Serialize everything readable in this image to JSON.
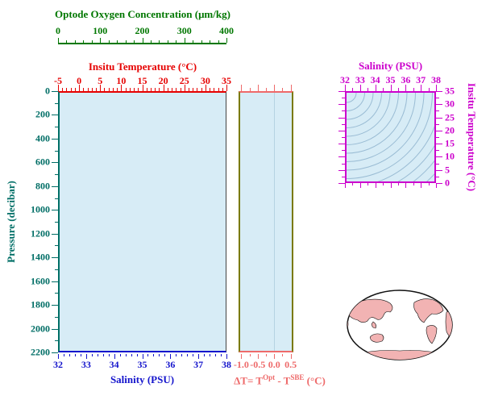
{
  "colors": {
    "oxygen": "#007700",
    "temperature": "#e60000",
    "pressure": "#006e66",
    "salinity": "#1414cc",
    "delta": "#ee6a6a",
    "ts": "#cc00cc",
    "frame_olive": "#7a7a00",
    "frame_dark": "#444444",
    "plot_fill": "#d7ecf6",
    "contour": "#9abcd4",
    "grid": "#b5d3e2",
    "land": "#f2b3b3",
    "outline": "#111111"
  },
  "main_plot": {
    "oxygen_axis": {
      "label": "Optode Oxygen Concentration (μm/kg)",
      "ticks": [
        "0",
        "100",
        "200",
        "300",
        "400"
      ]
    },
    "temperature_axis": {
      "label": "Insitu Temperature (°C)",
      "ticks": [
        "-5",
        "0",
        "5",
        "10",
        "15",
        "20",
        "25",
        "30",
        "35"
      ]
    },
    "pressure_axis": {
      "label": "Pressure (decibar)",
      "ticks": [
        "0",
        "200",
        "400",
        "600",
        "800",
        "1000",
        "1200",
        "1400",
        "1600",
        "1800",
        "2000",
        "2200"
      ]
    },
    "salinity_axis": {
      "label": "Salinity (PSU)",
      "ticks": [
        "32",
        "33",
        "34",
        "35",
        "36",
        "37",
        "38"
      ]
    }
  },
  "delta_plot": {
    "axis": {
      "ticks": [
        "-1.0",
        "-0.5",
        "0.0",
        "0.5"
      ]
    },
    "label": {
      "part1": "ΔT= T",
      "sup1": "Opt",
      "part2": " - T",
      "sup2": "SBE",
      "part3": " (°C)"
    }
  },
  "ts_plot": {
    "salinity_axis": {
      "label": "Salinity (PSU)",
      "ticks": [
        "32",
        "33",
        "34",
        "35",
        "36",
        "37",
        "38"
      ]
    },
    "temperature_axis": {
      "label": "Insitu Temperature (°C)",
      "ticks": [
        "35",
        "30",
        "25",
        "20",
        "15",
        "10",
        "5",
        "0"
      ]
    }
  },
  "map": {
    "name": "world-map-thumbnail"
  },
  "chart_data": [
    {
      "type": "scatter",
      "title": "Pressure profile panel",
      "xlabel": "Salinity (PSU)",
      "ylabel": "Pressure (decibar)",
      "xlim": [
        32,
        38
      ],
      "ylim": [
        2200,
        0
      ],
      "extra_top_axes": [
        {
          "label": "Insitu Temperature (°C)",
          "lim": [
            -5,
            35
          ]
        },
        {
          "label": "Optode Oxygen Concentration (μm/kg)",
          "lim": [
            0,
            400
          ]
        }
      ],
      "grid": false,
      "series": []
    },
    {
      "type": "scatter",
      "title": "Temperature difference profile panel",
      "xlabel": "ΔT = T^Opt - T^SBE (°C)",
      "ylabel": "Pressure (decibar)",
      "xlim": [
        -1.1,
        0.6
      ],
      "ylim": [
        2200,
        0
      ],
      "zero_line_x": 0.0,
      "grid": false,
      "series": []
    },
    {
      "type": "line",
      "title": "T-S diagram panel",
      "xlabel": "Salinity (PSU)",
      "ylabel": "Insitu Temperature (°C)",
      "xlim": [
        32,
        38
      ],
      "ylim": [
        0,
        35
      ],
      "annotations": [
        "isopycnal contour curves, no data points plotted"
      ],
      "series": []
    }
  ]
}
